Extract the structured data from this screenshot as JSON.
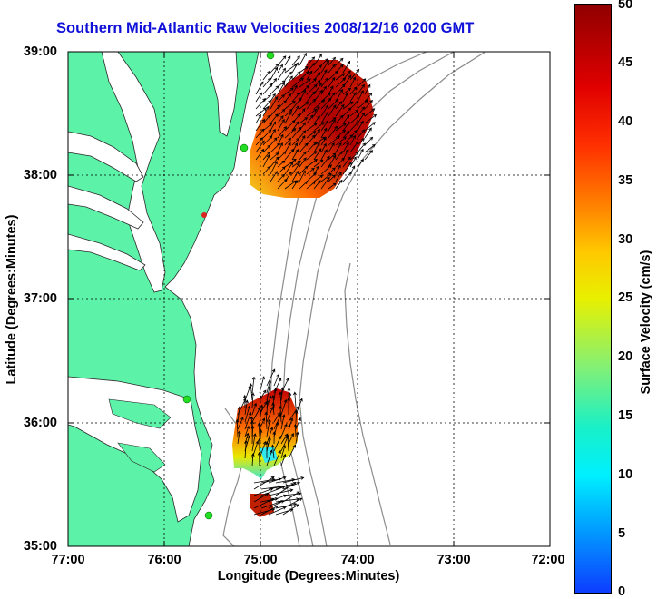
{
  "title": "Southern Mid-Atlantic Raw Velocities 2008/12/16 0200 GMT",
  "xlabel": "Longitude (Degrees:Minutes)",
  "ylabel": "Latitude (Degrees:Minutes)",
  "colorbar": {
    "label": "Surface Velocity (cm/s)",
    "ticks": [
      "0",
      "5",
      "10",
      "15",
      "20",
      "25",
      "30",
      "35",
      "40",
      "45",
      "50"
    ],
    "range": [
      0,
      50
    ]
  },
  "xticks": [
    "77:00",
    "76:00",
    "75:00",
    "74:00",
    "73:00",
    "72:00"
  ],
  "yticks": [
    "39:00",
    "38:00",
    "37:00",
    "36:00",
    "35:00"
  ],
  "colors": {
    "land": "#5cf2a8",
    "title": "#1010d8",
    "station": "#22dd22",
    "grid": "#000000"
  }
}
